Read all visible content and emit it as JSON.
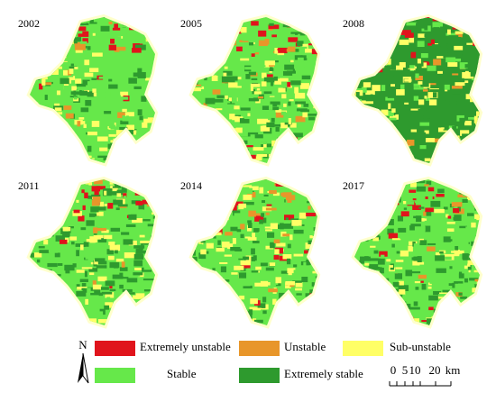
{
  "panels": [
    {
      "year": "2002"
    },
    {
      "year": "2005"
    },
    {
      "year": "2008"
    },
    {
      "year": "2011"
    },
    {
      "year": "2014"
    },
    {
      "year": "2017"
    }
  ],
  "legend": {
    "north": "N",
    "items": [
      {
        "label": "Extremely unstable",
        "color": "#e0141c"
      },
      {
        "label": "Unstable",
        "color": "#e8962a"
      },
      {
        "label": "Sub-unstable",
        "color": "#ffff66"
      },
      {
        "label": "Stable",
        "color": "#66e84a"
      },
      {
        "label": "Extremely stable",
        "color": "#2e9a2e"
      }
    ]
  },
  "scale": {
    "labels": [
      "0",
      "5",
      "10",
      "20",
      "km"
    ]
  }
}
